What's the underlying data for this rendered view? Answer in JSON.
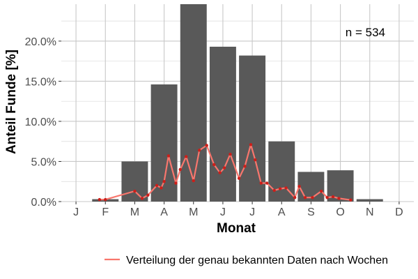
{
  "chart_data": {
    "type": "bar",
    "title": "",
    "xlabel": "Monat",
    "ylabel": "Anteil Funde [%]",
    "annotation": "n = 534",
    "categories": [
      "J",
      "F",
      "M",
      "A",
      "M",
      "J",
      "J",
      "A",
      "S",
      "O",
      "N",
      "D"
    ],
    "values": [
      0.0,
      0.3,
      5.0,
      14.6,
      24.6,
      19.3,
      18.2,
      7.5,
      3.7,
      3.9,
      0.3,
      0.0
    ],
    "ylim": [
      0,
      24.6
    ],
    "y_ticks": [
      0,
      5,
      10,
      15,
      20
    ],
    "y_tick_labels": [
      "0.0%",
      "5.0%",
      "10.0%",
      "15.0%",
      "20.0%"
    ],
    "grid": true,
    "legend_position": "bottom",
    "bar_color": "#595959",
    "line_series": {
      "name": "Verteilung der genau bekannten Daten nach Wochen",
      "color": "#f8766d",
      "point_color": "#cc1f1a",
      "x": [
        1.8,
        2.0,
        3.0,
        3.25,
        3.45,
        3.75,
        3.9,
        4.0,
        4.15,
        4.4,
        4.55,
        4.75,
        5.0,
        5.2,
        5.45,
        5.7,
        5.9,
        6.05,
        6.25,
        6.55,
        6.75,
        6.95,
        7.1,
        7.3,
        7.5,
        7.75,
        7.95,
        8.15,
        8.45,
        8.6,
        8.8,
        9.05,
        9.35,
        9.55,
        9.75,
        9.95,
        10.35
      ],
      "y": [
        0.25,
        0.25,
        1.3,
        0.4,
        0.8,
        2.0,
        1.7,
        2.5,
        5.7,
        2.3,
        4.0,
        5.6,
        2.6,
        6.4,
        7.0,
        4.6,
        3.6,
        4.2,
        5.9,
        2.9,
        4.4,
        7.1,
        5.2,
        2.3,
        2.3,
        1.4,
        1.6,
        1.7,
        0.5,
        1.9,
        0.5,
        0.5,
        1.3,
        0.5,
        0.6,
        0.4,
        0.2
      ]
    }
  }
}
